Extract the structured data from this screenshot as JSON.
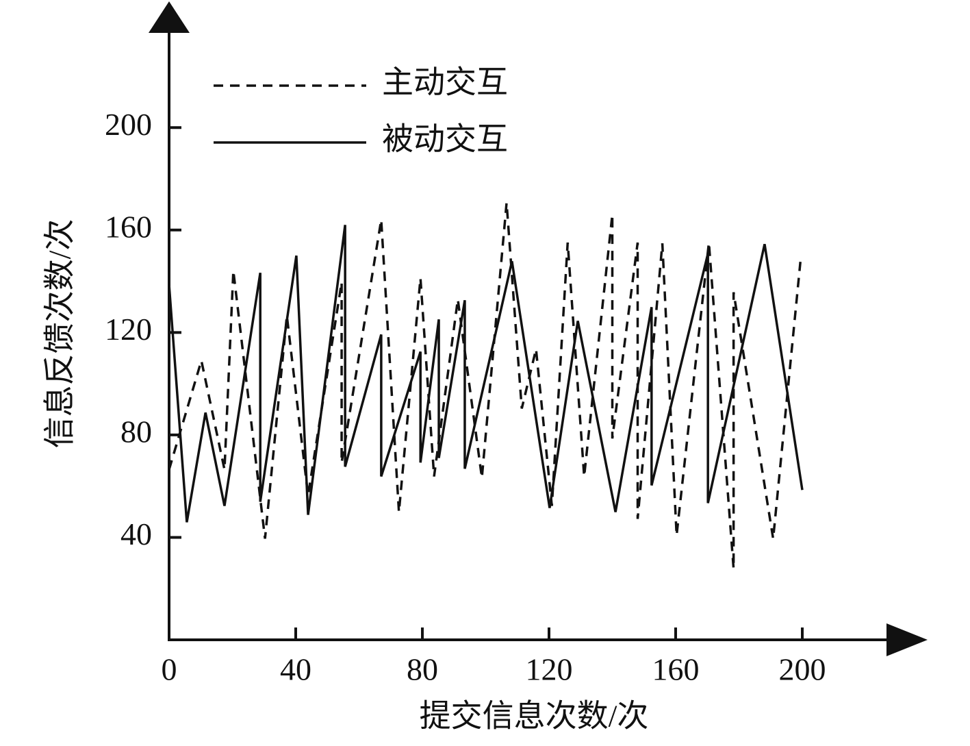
{
  "chart_data": {
    "type": "line",
    "x_label": "提交信息次数/次",
    "y_label": "信息反馈次数/次",
    "xlim": [
      0,
      240
    ],
    "ylim": [
      0,
      245
    ],
    "xticks": [
      0,
      40,
      80,
      120,
      160,
      200
    ],
    "yticks": [
      40,
      80,
      120,
      160,
      200
    ],
    "series": [
      {
        "name": "主动交互",
        "color": "#111111",
        "dash": true,
        "x": [
          0,
          10.2,
          17.5,
          20.3,
          30.3,
          37.2,
          43.9,
          54.5,
          54.5,
          67.0,
          72.6,
          79.4,
          83.7,
          91.2,
          98.8,
          106.6,
          111.4,
          115.9,
          120.9,
          125.9,
          131.1,
          140.0,
          140.0,
          148.0,
          148.0,
          155.8,
          160.3,
          170.5,
          178.3,
          178.3,
          190.8,
          199.4
        ],
        "values": [
          66.5,
          109.0,
          66.5,
          144.1,
          39.5,
          126.5,
          56.4,
          139.6,
          69.2,
          164.0,
          49.9,
          141.2,
          63.8,
          132.9,
          63.3,
          170.6,
          90.3,
          113.5,
          52.3,
          155.1,
          63.8,
          166.1,
          78.6,
          155.1,
          47.2,
          154.8,
          40.8,
          155.1,
          27.8,
          135.7,
          39.5,
          147.6
        ]
      },
      {
        "name": "被动交互",
        "color": "#111111",
        "dash": false,
        "x": [
          0,
          5.6,
          11.5,
          17.5,
          28.8,
          28.8,
          40.2,
          43.9,
          55.6,
          55.6,
          67.0,
          67.0,
          79.4,
          79.4,
          85.2,
          85.2,
          93.4,
          93.4,
          108.3,
          120.2,
          129.1,
          141.0,
          152.4,
          152.4,
          170.2,
          170.2,
          188.1,
          200
        ],
        "values": [
          138.7,
          45.9,
          88.7,
          52.3,
          143.3,
          53.9,
          150.0,
          48.8,
          162.0,
          67.6,
          119.2,
          63.8,
          112.5,
          69.2,
          125.1,
          71.0,
          132.6,
          66.8,
          147.8,
          51.5,
          124.5,
          49.9,
          129.9,
          60.3,
          150.8,
          53.4,
          154.5,
          58.5
        ]
      }
    ]
  }
}
